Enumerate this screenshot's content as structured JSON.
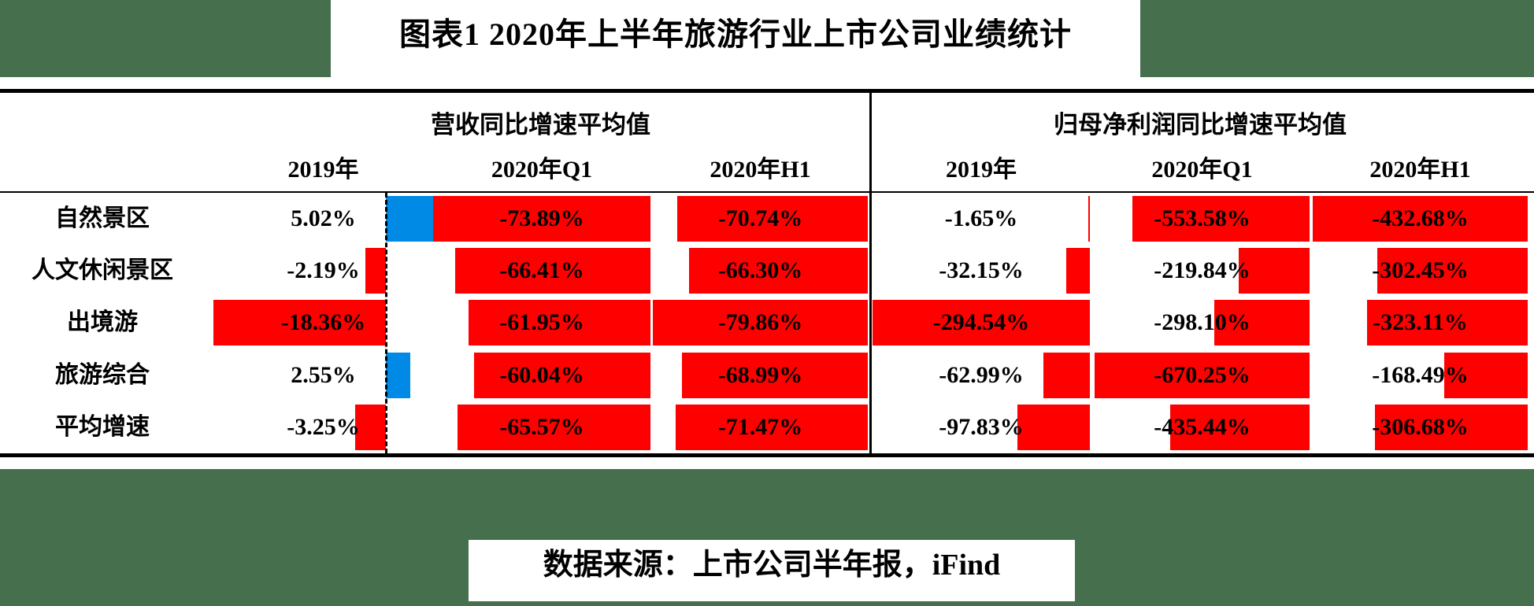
{
  "title": "图表1  2020年上半年旅游行业上市公司业绩统计",
  "source_caption": "数据来源：上市公司半年报，iFind",
  "colors": {
    "canvas_green": "#46704D",
    "sheet_white": "#FFFFFF",
    "border_black": "#000000",
    "bar_negative_red": "#FF0000",
    "bar_positive_blue": "#008AE6",
    "text_black": "#000000"
  },
  "chart_data": {
    "type": "table",
    "title": "图表1  2020年上半年旅游行业上市公司业绩统计",
    "notes": "Table with Excel-style conditional-formatting data bars; negative bars red extending left from axis, positive bars blue extending right; dashed axis shown in mixed-sign column; all-negative columns anchor bars at cell right edge",
    "row_labels": [
      "自然景区",
      "人文休闲景区",
      "出境游",
      "旅游综合",
      "平均增速"
    ],
    "column_groups": [
      {
        "label": "营收同比增速平均值",
        "columns": [
          {
            "label": "2019年",
            "values": [
              5.02,
              -2.19,
              -18.36,
              2.55,
              -3.25
            ]
          },
          {
            "label": "2020年Q1",
            "values": [
              -73.89,
              -66.41,
              -61.95,
              -60.04,
              -65.57
            ]
          },
          {
            "label": "2020年H1",
            "values": [
              -70.74,
              -66.3,
              -79.86,
              -68.99,
              -71.47
            ]
          }
        ]
      },
      {
        "label": "归母净利润同比增速平均值",
        "columns": [
          {
            "label": "2019年",
            "values": [
              -1.65,
              -32.15,
              -294.54,
              -62.99,
              -97.83
            ]
          },
          {
            "label": "2020年Q1",
            "values": [
              -553.58,
              -219.84,
              -298.1,
              -670.25,
              -435.44
            ]
          },
          {
            "label": "2020年H1",
            "values": [
              -432.68,
              -302.45,
              -323.11,
              -168.49,
              -306.68
            ]
          }
        ]
      }
    ],
    "value_suffix": "%",
    "bar_colors": {
      "negative": "#FF0000",
      "positive": "#008AE6"
    },
    "source": "数据来源：上市公司半年报，iFind"
  }
}
